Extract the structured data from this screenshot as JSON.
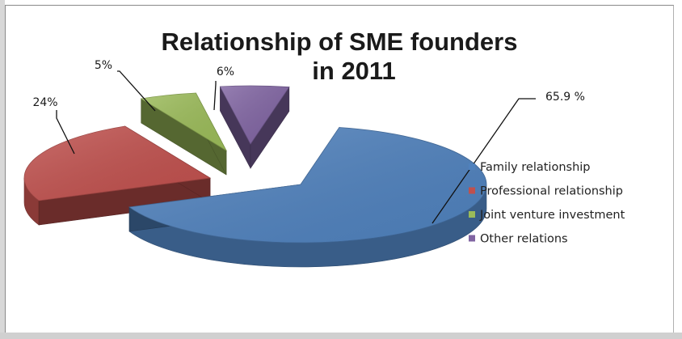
{
  "chart_data": {
    "type": "pie",
    "title_lines": [
      "Relationship of SME founders",
      "in 2011"
    ],
    "categories": [
      "Family relationship",
      "Professional relationship",
      "Joint venture investment",
      "Other relations"
    ],
    "values": [
      65.9,
      24,
      5,
      6
    ],
    "data_labels": [
      "65.9 %",
      "24%",
      "5%",
      "6%"
    ],
    "colors": [
      "#4f81bd",
      "#c0504d",
      "#9bbb59",
      "#8064a2"
    ],
    "legend_position": "right",
    "style": "exploded 3D pie"
  }
}
